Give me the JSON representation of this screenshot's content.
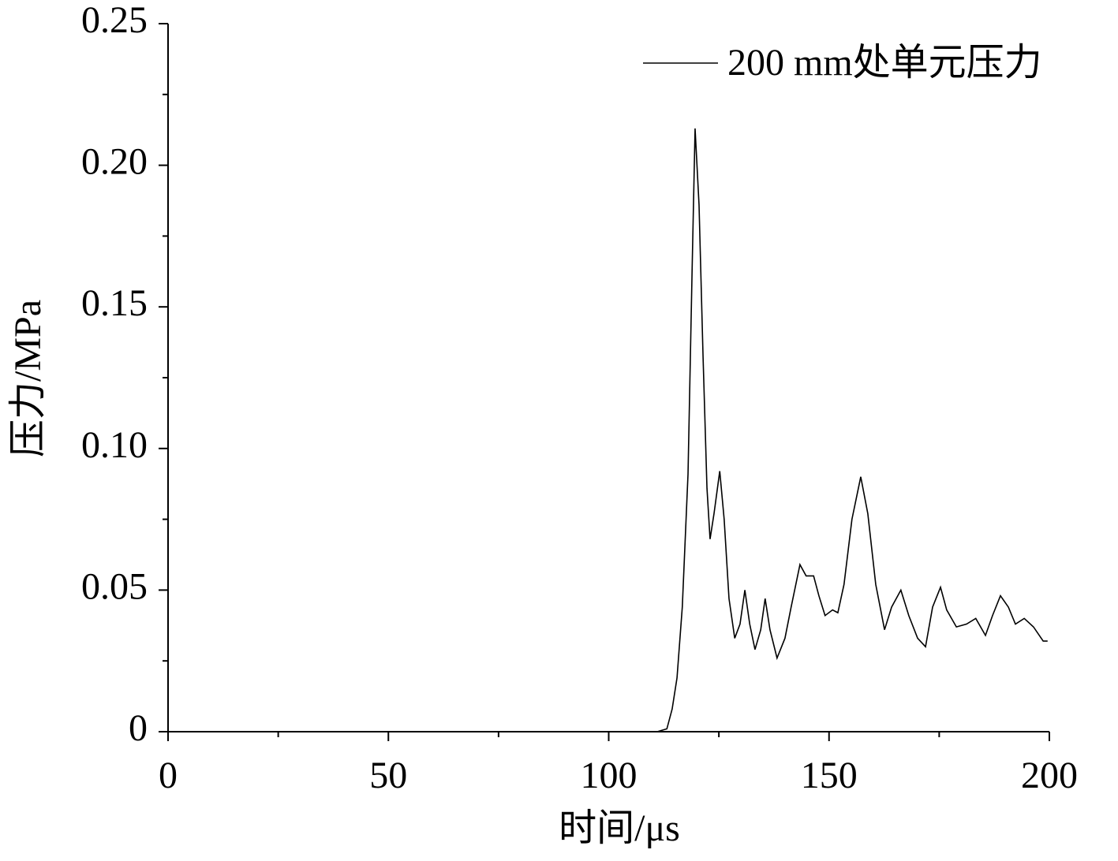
{
  "chart_data": {
    "type": "line",
    "xlabel": "时间/μs",
    "ylabel": "压力/MPa",
    "x": [
      0,
      111,
      113.2,
      114.4,
      115.5,
      116.7,
      118,
      118.9,
      119.6,
      120.5,
      121.4,
      122.3,
      123,
      123.9,
      125.2,
      126.2,
      127.3,
      128.6,
      129.8,
      130.9,
      132,
      133.2,
      134.5,
      135.5,
      136.6,
      138.2,
      140,
      141.4,
      143.4,
      144.8,
      146.5,
      147.7,
      149.1,
      150.8,
      152,
      153.4,
      155.2,
      157.2,
      158.8,
      160.6,
      162.6,
      164.2,
      166.3,
      168.1,
      170.1,
      171.9,
      173.5,
      175.3,
      176.7,
      178.9,
      181.2,
      183.3,
      185.5,
      187.1,
      188.9,
      190.7,
      192.3,
      194.3,
      196.4,
      198.6,
      199.6
    ],
    "series": [
      {
        "name": "200 mm处单元压力",
        "color": "#000000",
        "values": [
          0,
          0,
          0.001,
          0.008,
          0.019,
          0.044,
          0.091,
          0.161,
          0.213,
          0.186,
          0.133,
          0.086,
          0.068,
          0.077,
          0.092,
          0.075,
          0.047,
          0.033,
          0.038,
          0.05,
          0.038,
          0.029,
          0.036,
          0.047,
          0.036,
          0.026,
          0.033,
          0.044,
          0.059,
          0.055,
          0.055,
          0.048,
          0.041,
          0.043,
          0.042,
          0.052,
          0.075,
          0.09,
          0.077,
          0.052,
          0.036,
          0.044,
          0.05,
          0.041,
          0.033,
          0.03,
          0.044,
          0.051,
          0.043,
          0.037,
          0.038,
          0.04,
          0.034,
          0.041,
          0.048,
          0.044,
          0.038,
          0.04,
          0.037,
          0.032,
          0.032
        ]
      }
    ],
    "xlim": [
      0,
      200
    ],
    "xticks": [
      0,
      50,
      100,
      150,
      200
    ],
    "xminor_ticks": [
      25,
      75,
      125,
      175
    ],
    "ylim": [
      0,
      0.25
    ],
    "yticks": [
      0,
      0.05,
      {
        "value": 0.1,
        "label": "0.10"
      },
      0.15,
      {
        "value": 0.2,
        "label": "0.20"
      },
      0.25
    ],
    "yminor_ticks": [
      0.025,
      0.075,
      0.125,
      0.175,
      0.225
    ],
    "grid": false,
    "legend": "upper right"
  }
}
